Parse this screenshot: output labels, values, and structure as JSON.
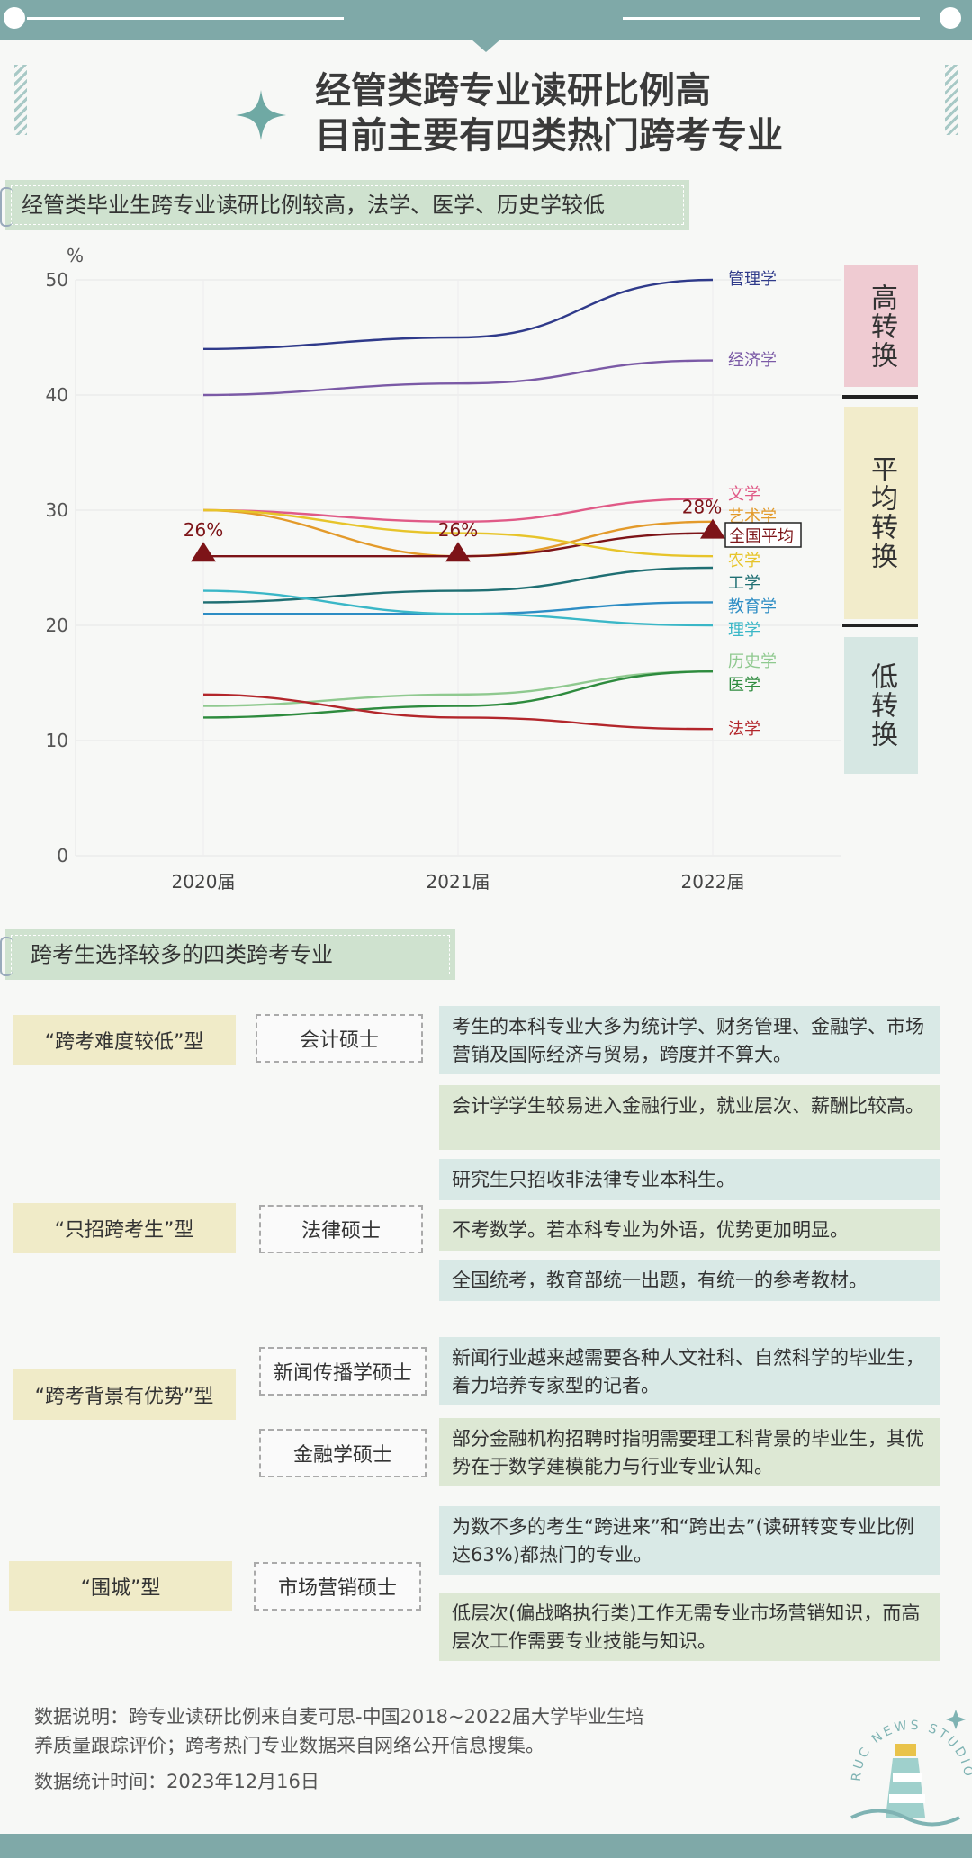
{
  "title": {
    "line1": "经管类跨专业读研比例高",
    "line2": "目前主要有四类热门跨考专业"
  },
  "section1": {
    "heading": "经管类毕业生跨专业读研比例较高，法学、医学、历史学较低"
  },
  "section2": {
    "heading": "跨考生选择较多的四类跨考专业"
  },
  "categories": {
    "high": {
      "label": "高转换",
      "color": "#efcbd2"
    },
    "avg": {
      "label": "平均转换",
      "color": "#f2eccb"
    },
    "low": {
      "label": "低转换",
      "color": "#d6e7e3"
    }
  },
  "chart_data": {
    "type": "line",
    "unit": "%",
    "x": [
      "2020届",
      "2021届",
      "2022届"
    ],
    "ylim": [
      0,
      50
    ],
    "yticks": [
      0,
      10,
      20,
      30,
      40,
      50
    ],
    "grid": true,
    "series": [
      {
        "name": "管理学",
        "values": [
          44,
          45,
          50
        ],
        "color": "#2f3a8a"
      },
      {
        "name": "经济学",
        "values": [
          40,
          41,
          43
        ],
        "color": "#7b5aa6"
      },
      {
        "name": "文学",
        "values": [
          30,
          29,
          31
        ],
        "color": "#e05a87"
      },
      {
        "name": "艺术学",
        "values": [
          30,
          26,
          29
        ],
        "color": "#e39a2a"
      },
      {
        "name": "全国平均",
        "values": [
          26,
          26,
          28
        ],
        "color": "#7d1418",
        "labels": [
          "26%",
          "26%",
          "28%"
        ]
      },
      {
        "name": "农学",
        "values": [
          30,
          28,
          26
        ],
        "color": "#e7c42a"
      },
      {
        "name": "工学",
        "values": [
          22,
          23,
          25
        ],
        "color": "#1f6f73"
      },
      {
        "name": "教育学",
        "values": [
          21,
          21,
          22
        ],
        "color": "#2d8dc4"
      },
      {
        "name": "理学",
        "values": [
          23,
          21,
          20
        ],
        "color": "#3ab7c7"
      },
      {
        "name": "历史学",
        "values": [
          13,
          14,
          16
        ],
        "color": "#8fc98f"
      },
      {
        "name": "医学",
        "values": [
          12,
          13,
          16
        ],
        "color": "#2e8b3e"
      },
      {
        "name": "法学",
        "values": [
          14,
          12,
          11
        ],
        "color": "#b3262b"
      }
    ]
  },
  "types": [
    {
      "type": "“跨考难度较低”型",
      "degree": "会计硕士",
      "descs": [
        "考生的本科专业大多为统计学、财务管理、金融学、市场营销及国际经济与贸易，跨度并不算大。",
        "会计学学生较易进入金融行业，就业层次、薪酬比较高。"
      ]
    },
    {
      "type": "“只招跨考生”型",
      "degree": "法律硕士",
      "descs": [
        "研究生只招收非法律专业本科生。",
        "不考数学。若本科专业为外语，优势更加明显。",
        "全国统考，教育部统一出题，有统一的参考教材。"
      ]
    },
    {
      "type": "“跨考背景有优势”型",
      "degree": "新闻传播学硕士",
      "degree2": "金融学硕士",
      "descs": [
        "新闻行业越来越需要各种人文社科、自然科学的毕业生，着力培养专家型的记者。",
        "部分金融机构招聘时指明需要理工科背景的毕业生，其优势在于数学建模能力与行业专业认知。"
      ]
    },
    {
      "type": "“围城”型",
      "degree": "市场营销硕士",
      "descs": [
        "为数不多的考生“跨进来”和“跨出去”(读研转变专业比例达63%)都热门的专业。",
        "低层次(偏战略执行类)工作无需专业市场营销知识，而高层次工作需要专业技能与知识。"
      ]
    }
  ],
  "notes": {
    "line1": "数据说明：跨专业读研比例来自麦可思-中国2018~2022届大学毕业生培",
    "line2": "养质量跟踪评价；跨考热门专业数据来自网络公开信息搜集。",
    "line3": "数据统计时间：2023年12月16日"
  },
  "logo": {
    "text": "RUC NEWS STUDIO"
  }
}
